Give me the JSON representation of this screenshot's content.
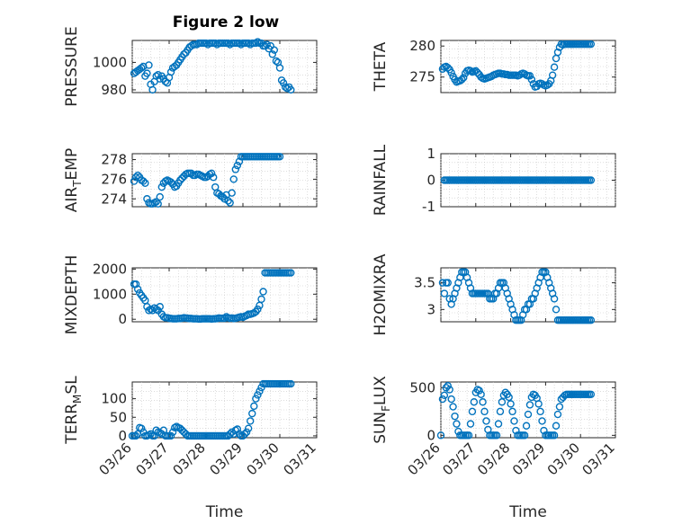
{
  "figure_title": "Figure 2 low",
  "accent_color": "#0072BD",
  "chart_data": [
    {
      "type": "scatter",
      "id": "pressure",
      "ylabel": "PRESSURE",
      "ylim": [
        978,
        1016
      ],
      "yticks": [
        980,
        1000
      ],
      "xlim": [
        0,
        5
      ],
      "x": [
        0.05,
        0.1,
        0.15,
        0.2,
        0.25,
        0.3,
        0.35,
        0.4,
        0.45,
        0.5,
        0.55,
        0.6,
        0.65,
        0.7,
        0.75,
        0.8,
        0.85,
        0.9,
        0.95,
        1.0,
        1.05,
        1.1,
        1.15,
        1.2,
        1.25,
        1.3,
        1.35,
        1.4,
        1.45,
        1.5,
        1.55,
        1.6,
        1.65,
        1.7,
        1.75,
        1.8,
        1.85,
        1.9,
        1.95,
        2.0,
        2.05,
        2.1,
        2.15,
        2.2,
        2.25,
        2.3,
        2.35,
        2.4,
        2.45,
        2.5,
        2.55,
        2.6,
        2.65,
        2.7,
        2.75,
        2.8,
        2.85,
        2.9,
        2.95,
        3.0,
        3.05,
        3.1,
        3.15,
        3.2,
        3.25,
        3.3,
        3.35,
        3.4,
        3.45,
        3.5,
        3.55,
        3.6,
        3.65,
        3.7,
        3.75,
        3.8,
        3.85,
        3.9,
        3.95,
        4.0,
        4.05,
        4.1,
        4.15,
        4.2,
        4.25,
        4.3
      ],
      "y": [
        992,
        993,
        994,
        995,
        996,
        997,
        990,
        992,
        998,
        984,
        980,
        986,
        990,
        991,
        988,
        990,
        988,
        986,
        985,
        989,
        993,
        996,
        997,
        998,
        1000,
        1002,
        1004,
        1006,
        1007,
        1009,
        1011,
        1012,
        1013,
        1013,
        1013,
        1014,
        1014,
        1014,
        1014,
        1014,
        1013,
        1014,
        1014,
        1014,
        1014,
        1013,
        1014,
        1014,
        1014,
        1014,
        1014,
        1014,
        1013,
        1014,
        1014,
        1014,
        1014,
        1014,
        1013,
        1014,
        1014,
        1014,
        1014,
        1013,
        1014,
        1014,
        1014,
        1015,
        1014,
        1014,
        1012,
        1012,
        1013,
        1010,
        1012,
        1006,
        1009,
        1001,
        1000,
        996,
        987,
        985,
        982,
        981,
        982,
        980
      ]
    },
    {
      "type": "scatter",
      "id": "theta",
      "ylabel": "THETA",
      "ylim": [
        272.5,
        280.9
      ],
      "yticks": [
        275,
        280
      ],
      "xlim": [
        0,
        5
      ],
      "x": [
        0.05,
        0.1,
        0.15,
        0.2,
        0.25,
        0.3,
        0.35,
        0.4,
        0.45,
        0.5,
        0.55,
        0.6,
        0.65,
        0.7,
        0.75,
        0.8,
        0.85,
        0.9,
        0.95,
        1.0,
        1.05,
        1.1,
        1.15,
        1.2,
        1.25,
        1.3,
        1.35,
        1.4,
        1.45,
        1.5,
        1.55,
        1.6,
        1.65,
        1.7,
        1.75,
        1.8,
        1.85,
        1.9,
        1.95,
        2.0,
        2.05,
        2.1,
        2.15,
        2.2,
        2.25,
        2.3,
        2.35,
        2.4,
        2.45,
        2.5,
        2.55,
        2.6,
        2.65,
        2.7,
        2.75,
        2.8,
        2.85,
        2.9,
        2.95,
        3.0,
        3.05,
        3.1,
        3.15,
        3.2,
        3.25,
        3.3,
        3.35,
        3.4,
        3.45,
        3.5,
        3.55,
        3.6,
        3.65,
        3.7,
        3.75,
        3.8,
        3.85,
        3.9,
        3.95,
        4.0,
        4.05,
        4.1,
        4.15,
        4.2,
        4.25,
        4.3
      ],
      "y": [
        276.3,
        276.6,
        276.7,
        276.5,
        276.2,
        275.7,
        275.1,
        274.6,
        274.2,
        274.3,
        274.4,
        274.6,
        274.9,
        275.6,
        276.0,
        276.1,
        276.0,
        275.8,
        275.9,
        276.0,
        275.7,
        275.4,
        275.0,
        274.8,
        274.7,
        274.8,
        274.9,
        275.0,
        275.1,
        275.3,
        275.4,
        275.5,
        275.6,
        275.6,
        275.5,
        275.5,
        275.4,
        275.4,
        275.3,
        275.3,
        275.3,
        275.3,
        275.3,
        275.2,
        275.3,
        275.5,
        275.6,
        275.5,
        275.3,
        275.2,
        275.2,
        274.6,
        273.9,
        273.4,
        273.5,
        273.9,
        274.0,
        273.9,
        273.7,
        273.6,
        273.7,
        273.9,
        274.4,
        275.3,
        276.6,
        278.0,
        279.0,
        279.8,
        280.3,
        280.2,
        280.3,
        280.3,
        280.3,
        280.3,
        280.3,
        280.3,
        280.3,
        280.3,
        280.3,
        280.3,
        280.3,
        280.3,
        280.3,
        280.3,
        280.3,
        280.3
      ]
    },
    {
      "type": "scatter",
      "id": "airtemp",
      "ylabel_main": "AIR",
      "ylabel_sub": "T",
      "ylabel_tail": "EMP",
      "ylim": [
        273.2,
        278.6
      ],
      "yticks": [
        274,
        276,
        278
      ],
      "xlim": [
        0,
        5
      ],
      "x": [
        0.05,
        0.1,
        0.15,
        0.2,
        0.25,
        0.3,
        0.35,
        0.4,
        0.45,
        0.5,
        0.55,
        0.6,
        0.65,
        0.7,
        0.75,
        0.8,
        0.85,
        0.9,
        0.95,
        1.0,
        1.05,
        1.1,
        1.15,
        1.2,
        1.25,
        1.3,
        1.35,
        1.4,
        1.45,
        1.5,
        1.55,
        1.6,
        1.65,
        1.7,
        1.75,
        1.8,
        1.85,
        1.9,
        1.95,
        2.0,
        2.05,
        2.1,
        2.15,
        2.2,
        2.25,
        2.3,
        2.35,
        2.4,
        2.45,
        2.5,
        2.55,
        2.6,
        2.65,
        2.7,
        2.75,
        2.8,
        2.85,
        2.9,
        2.95,
        3.0,
        3.05,
        3.1,
        3.15,
        3.2,
        3.25,
        3.3,
        3.35,
        3.4,
        3.45,
        3.5,
        3.55,
        3.6,
        3.65,
        3.7,
        3.75,
        3.8,
        3.85,
        3.9,
        3.95,
        4.0
      ],
      "y": [
        275.8,
        276.2,
        276.4,
        276.2,
        275.9,
        275.8,
        275.6,
        274.0,
        273.6,
        273.5,
        273.5,
        273.6,
        273.7,
        273.5,
        274.2,
        275.2,
        275.6,
        275.8,
        275.9,
        275.8,
        275.7,
        275.5,
        275.2,
        275.3,
        275.6,
        275.9,
        276.1,
        276.3,
        276.5,
        276.6,
        276.6,
        276.6,
        276.4,
        276.4,
        276.5,
        276.5,
        276.4,
        276.3,
        276.2,
        276.2,
        276.3,
        276.5,
        276.6,
        276.2,
        275.2,
        274.6,
        274.5,
        274.3,
        274.2,
        274.0,
        274.4,
        273.8,
        273.6,
        274.6,
        276.0,
        277.0,
        277.4,
        277.8,
        278.3,
        278.3,
        278.3,
        278.3,
        278.3,
        278.3,
        278.3,
        278.3,
        278.3,
        278.3,
        278.3,
        278.3,
        278.3,
        278.3,
        278.3,
        278.3,
        278.3,
        278.3,
        278.3,
        278.3,
        278.3,
        278.3
      ]
    },
    {
      "type": "scatter",
      "id": "rainfall",
      "ylabel": "RAINFALL",
      "ylim": [
        -1,
        1
      ],
      "yticks": [
        -1,
        0,
        1
      ],
      "xlim": [
        0,
        5
      ],
      "x_range": [
        0.1,
        4.3
      ],
      "x_count": 85,
      "constant_value": 0
    },
    {
      "type": "scatter",
      "id": "mixdepth",
      "ylabel": "MIXDEPTH",
      "ylim": [
        -100,
        2050
      ],
      "yticks": [
        0,
        1000,
        2000
      ],
      "xlim": [
        0,
        5
      ],
      "x": [
        0.05,
        0.1,
        0.15,
        0.2,
        0.25,
        0.3,
        0.35,
        0.4,
        0.45,
        0.5,
        0.55,
        0.6,
        0.65,
        0.7,
        0.75,
        0.8,
        0.85,
        0.9,
        0.95,
        1.0,
        1.05,
        1.1,
        1.15,
        1.2,
        1.25,
        1.3,
        1.35,
        1.4,
        1.45,
        1.5,
        1.55,
        1.6,
        1.65,
        1.7,
        1.75,
        1.8,
        1.85,
        1.9,
        1.95,
        2.0,
        2.05,
        2.1,
        2.15,
        2.2,
        2.25,
        2.3,
        2.35,
        2.4,
        2.45,
        2.5,
        2.55,
        2.6,
        2.65,
        2.7,
        2.75,
        2.8,
        2.85,
        2.9,
        2.95,
        3.0,
        3.05,
        3.1,
        3.15,
        3.2,
        3.25,
        3.3,
        3.35,
        3.4,
        3.45,
        3.5,
        3.55,
        3.6,
        3.65,
        3.7,
        3.75,
        3.8,
        3.85,
        3.9,
        3.95,
        4.0,
        4.05,
        4.1,
        4.15,
        4.2,
        4.25,
        4.3
      ],
      "y": [
        1400,
        1400,
        1200,
        1050,
        950,
        850,
        750,
        500,
        350,
        400,
        350,
        450,
        400,
        350,
        500,
        200,
        100,
        60,
        60,
        40,
        30,
        20,
        20,
        20,
        30,
        30,
        40,
        60,
        50,
        40,
        30,
        30,
        20,
        20,
        20,
        10,
        10,
        20,
        20,
        20,
        20,
        20,
        10,
        20,
        20,
        30,
        50,
        40,
        40,
        40,
        100,
        60,
        40,
        50,
        30,
        40,
        60,
        80,
        100,
        80,
        120,
        150,
        200,
        200,
        220,
        250,
        300,
        400,
        550,
        800,
        1100,
        1850,
        1850,
        1850,
        1850,
        1850,
        1850,
        1850,
        1850,
        1850,
        1850,
        1850,
        1850,
        1850,
        1850,
        1850
      ]
    },
    {
      "type": "scatter",
      "id": "h2omixra",
      "ylabel": "H2OMIXRA",
      "ylim": [
        2.77,
        3.78
      ],
      "yticks": [
        3,
        3.5
      ],
      "xlim": [
        0,
        5
      ],
      "x": [
        0.05,
        0.1,
        0.15,
        0.2,
        0.25,
        0.3,
        0.35,
        0.4,
        0.45,
        0.5,
        0.55,
        0.6,
        0.65,
        0.7,
        0.75,
        0.8,
        0.85,
        0.9,
        0.95,
        1.0,
        1.05,
        1.1,
        1.15,
        1.2,
        1.25,
        1.3,
        1.35,
        1.4,
        1.45,
        1.5,
        1.55,
        1.6,
        1.65,
        1.7,
        1.75,
        1.8,
        1.85,
        1.9,
        1.95,
        2.0,
        2.05,
        2.1,
        2.15,
        2.2,
        2.25,
        2.3,
        2.35,
        2.4,
        2.45,
        2.5,
        2.55,
        2.6,
        2.65,
        2.7,
        2.75,
        2.8,
        2.85,
        2.9,
        2.95,
        3.0,
        3.05,
        3.1,
        3.15,
        3.2,
        3.25,
        3.3,
        3.35,
        3.4,
        3.45,
        3.5,
        3.55,
        3.6,
        3.65,
        3.7,
        3.75,
        3.8,
        3.85,
        3.9,
        3.95,
        4.0,
        4.05,
        4.1,
        4.15,
        4.2,
        4.25,
        4.3
      ],
      "y": [
        3.5,
        3.3,
        3.5,
        3.5,
        3.2,
        3.1,
        3.2,
        3.3,
        3.4,
        3.5,
        3.6,
        3.7,
        3.7,
        3.7,
        3.6,
        3.5,
        3.4,
        3.3,
        3.3,
        3.3,
        3.3,
        3.3,
        3.3,
        3.3,
        3.3,
        3.3,
        3.3,
        3.2,
        3.2,
        3.2,
        3.3,
        3.3,
        3.4,
        3.5,
        3.5,
        3.5,
        3.4,
        3.3,
        3.2,
        3.1,
        3.0,
        2.9,
        2.8,
        2.8,
        2.8,
        2.8,
        2.9,
        3.0,
        3.0,
        3.1,
        3.1,
        3.2,
        3.2,
        3.3,
        3.4,
        3.5,
        3.6,
        3.7,
        3.7,
        3.7,
        3.6,
        3.5,
        3.4,
        3.3,
        3.2,
        3.0,
        2.8,
        2.8,
        2.8,
        2.8,
        2.8,
        2.8,
        2.8,
        2.8,
        2.8,
        2.8,
        2.8,
        2.8,
        2.8,
        2.8,
        2.8,
        2.8,
        2.8,
        2.8,
        2.8,
        2.8
      ]
    },
    {
      "type": "scatter",
      "id": "terrmsl",
      "ylabel_main": "TERR",
      "ylabel_sub": "M",
      "ylabel_tail": "SL",
      "ylim": [
        -5,
        145
      ],
      "yticks": [
        0,
        50,
        100
      ],
      "xlim": [
        0,
        5
      ],
      "xticklabels": [
        "03/26",
        "03/27",
        "03/28",
        "03/29",
        "03/30",
        "03/31"
      ],
      "xlabel": "Time",
      "x": [
        0.0,
        0.05,
        0.1,
        0.15,
        0.2,
        0.25,
        0.3,
        0.35,
        0.4,
        0.45,
        0.5,
        0.55,
        0.6,
        0.65,
        0.7,
        0.75,
        0.8,
        0.85,
        0.9,
        0.95,
        1.0,
        1.05,
        1.1,
        1.15,
        1.2,
        1.25,
        1.3,
        1.35,
        1.4,
        1.45,
        1.5,
        1.55,
        1.6,
        1.65,
        1.7,
        1.75,
        1.8,
        1.85,
        1.9,
        1.95,
        2.0,
        2.05,
        2.1,
        2.15,
        2.2,
        2.25,
        2.3,
        2.35,
        2.4,
        2.45,
        2.5,
        2.55,
        2.6,
        2.65,
        2.7,
        2.75,
        2.8,
        2.85,
        2.9,
        2.95,
        3.0,
        3.05,
        3.1,
        3.15,
        3.2,
        3.25,
        3.3,
        3.35,
        3.4,
        3.45,
        3.5,
        3.55,
        3.6,
        3.65,
        3.7,
        3.75,
        3.8,
        3.85,
        3.9,
        3.95,
        4.0,
        4.05,
        4.1,
        4.15,
        4.2,
        4.25,
        4.3
      ],
      "y": [
        0,
        0,
        0,
        5,
        22,
        20,
        10,
        0,
        0,
        2,
        5,
        0,
        0,
        15,
        10,
        8,
        5,
        15,
        0,
        0,
        0,
        0,
        10,
        22,
        25,
        22,
        20,
        15,
        10,
        5,
        0,
        0,
        0,
        0,
        0,
        0,
        0,
        0,
        0,
        0,
        0,
        0,
        0,
        0,
        0,
        0,
        0,
        0,
        0,
        0,
        0,
        0,
        0,
        5,
        10,
        5,
        15,
        18,
        5,
        0,
        0,
        5,
        10,
        20,
        40,
        60,
        80,
        100,
        110,
        120,
        130,
        140,
        140,
        140,
        140,
        140,
        140,
        140,
        140,
        140,
        140,
        140,
        140,
        140,
        140,
        140,
        140
      ]
    },
    {
      "type": "scatter",
      "id": "sunflux",
      "ylabel_main": "SUN",
      "ylabel_sub": "F",
      "ylabel_tail": "LUX",
      "ylim": [
        -25,
        560
      ],
      "yticks": [
        0,
        500
      ],
      "xlim": [
        0,
        5
      ],
      "xticklabels": [
        "03/26",
        "03/27",
        "03/28",
        "03/29",
        "03/30",
        "03/31"
      ],
      "xlabel": "Time",
      "x": [
        0.0,
        0.05,
        0.1,
        0.15,
        0.2,
        0.25,
        0.3,
        0.35,
        0.4,
        0.45,
        0.5,
        0.55,
        0.6,
        0.65,
        0.7,
        0.75,
        0.8,
        0.85,
        0.9,
        0.95,
        1.0,
        1.05,
        1.1,
        1.15,
        1.2,
        1.25,
        1.3,
        1.35,
        1.4,
        1.45,
        1.5,
        1.55,
        1.6,
        1.65,
        1.7,
        1.75,
        1.8,
        1.85,
        1.9,
        1.95,
        2.0,
        2.05,
        2.1,
        2.15,
        2.2,
        2.25,
        2.3,
        2.35,
        2.4,
        2.45,
        2.5,
        2.55,
        2.6,
        2.65,
        2.7,
        2.75,
        2.8,
        2.85,
        2.9,
        2.95,
        3.0,
        3.05,
        3.1,
        3.15,
        3.2,
        3.25,
        3.3,
        3.35,
        3.4,
        3.45,
        3.5,
        3.55,
        3.6,
        3.65,
        3.7,
        3.75,
        3.8,
        3.85,
        3.9,
        3.95,
        4.0,
        4.05,
        4.1,
        4.15,
        4.2,
        4.25,
        4.3
      ],
      "y": [
        0,
        380,
        420,
        500,
        520,
        480,
        380,
        300,
        200,
        120,
        40,
        0,
        0,
        0,
        0,
        0,
        0,
        120,
        250,
        350,
        450,
        480,
        470,
        430,
        350,
        250,
        150,
        60,
        0,
        0,
        0,
        0,
        0,
        120,
        250,
        350,
        420,
        450,
        430,
        400,
        330,
        250,
        150,
        50,
        0,
        0,
        0,
        0,
        0,
        100,
        220,
        320,
        400,
        430,
        420,
        390,
        330,
        250,
        150,
        50,
        0,
        0,
        0,
        0,
        0,
        0,
        100,
        220,
        300,
        380,
        400,
        420,
        430,
        430,
        430,
        430,
        430,
        430,
        430,
        430,
        430,
        430,
        430,
        430,
        430,
        430,
        430
      ]
    }
  ]
}
